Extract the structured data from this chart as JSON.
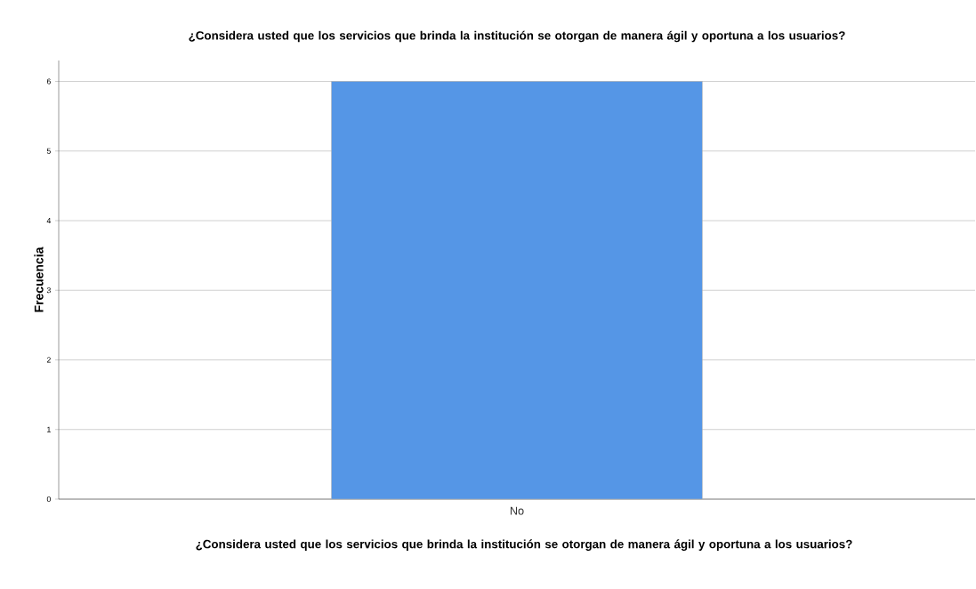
{
  "chart_data": {
    "type": "bar",
    "title": "¿Considera usted que los servicios que brinda la institución se otorgan de manera ágil y oportuna a los usuarios?",
    "xlabel": "¿Considera usted que los servicios que brinda la institución se otorgan de manera ágil y oportuna a los usuarios?",
    "ylabel": "Frecuencia",
    "categories": [
      "No"
    ],
    "values": [
      6
    ],
    "color": "#5596e6",
    "ylim": [
      0,
      6.3
    ],
    "yticks": [
      0,
      1,
      2,
      3,
      4,
      5,
      6
    ],
    "grid": "y"
  }
}
